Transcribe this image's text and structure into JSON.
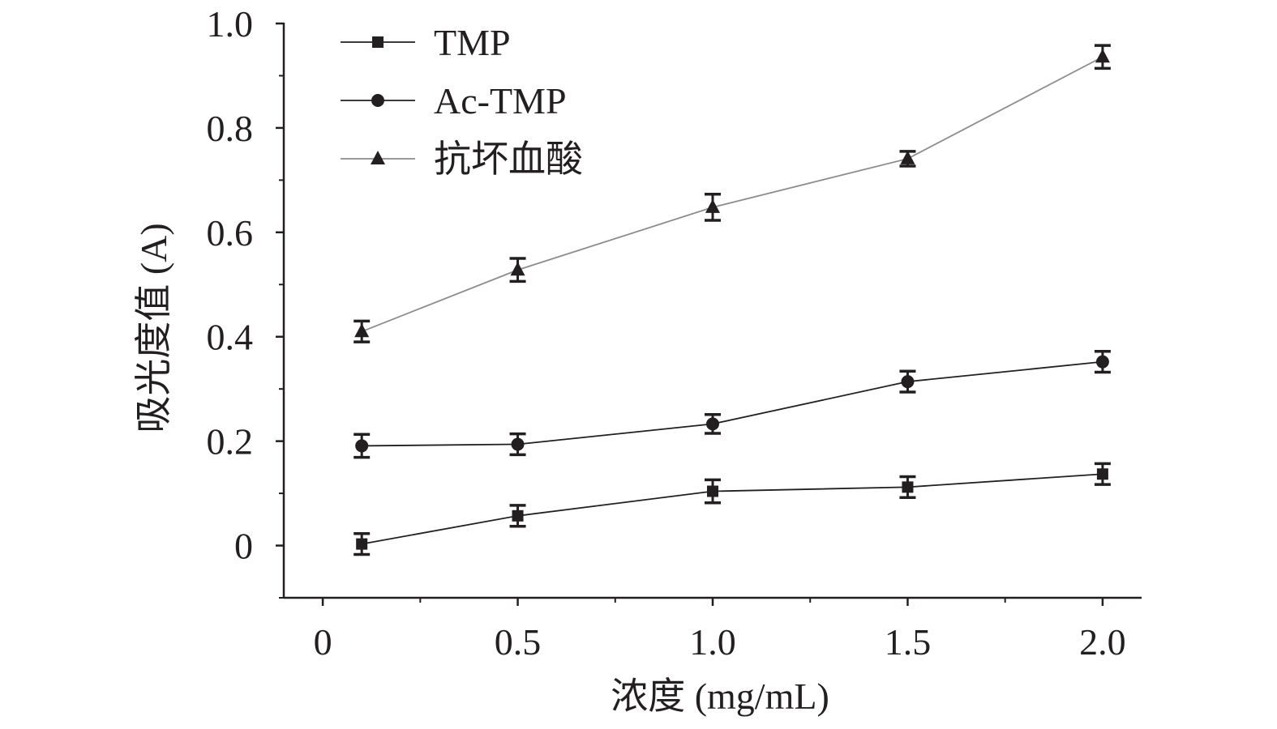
{
  "chart_data": {
    "type": "line",
    "title": "",
    "xlabel": "浓度 (mg/mL)",
    "ylabel": "吸光度值 (A)",
    "xlim": [
      -0.1,
      2.1
    ],
    "ylim": [
      -0.1,
      1.0
    ],
    "xticks": [
      0,
      0.5,
      1.0,
      1.5,
      2.0
    ],
    "xtick_labels": [
      "0",
      "0.5",
      "1.0",
      "1.5",
      "2.0"
    ],
    "yticks": [
      0,
      0.2,
      0.4,
      0.6,
      0.8,
      1.0
    ],
    "ytick_labels": [
      "0",
      "0.2",
      "0.4",
      "0.6",
      "0.8",
      "1.0"
    ],
    "grid": false,
    "legend_position": "top-left",
    "x": [
      0.1,
      0.5,
      1.0,
      1.5,
      2.0
    ],
    "series": [
      {
        "name": "TMP",
        "marker": "square",
        "line_color": "#231f20",
        "values": [
          0.003,
          0.057,
          0.104,
          0.112,
          0.137
        ],
        "errors": [
          0.02,
          0.02,
          0.022,
          0.02,
          0.02
        ]
      },
      {
        "name": "Ac-TMP",
        "marker": "circle",
        "line_color": "#231f20",
        "values": [
          0.191,
          0.194,
          0.233,
          0.314,
          0.352
        ],
        "errors": [
          0.022,
          0.02,
          0.018,
          0.02,
          0.02
        ]
      },
      {
        "name": "抗坏血酸",
        "marker": "triangle",
        "line_color": "#8c8c8c",
        "values": [
          0.41,
          0.528,
          0.648,
          0.741,
          0.936
        ],
        "errors": [
          0.02,
          0.022,
          0.025,
          0.014,
          0.022
        ]
      }
    ],
    "marker_color": "#231f20"
  }
}
